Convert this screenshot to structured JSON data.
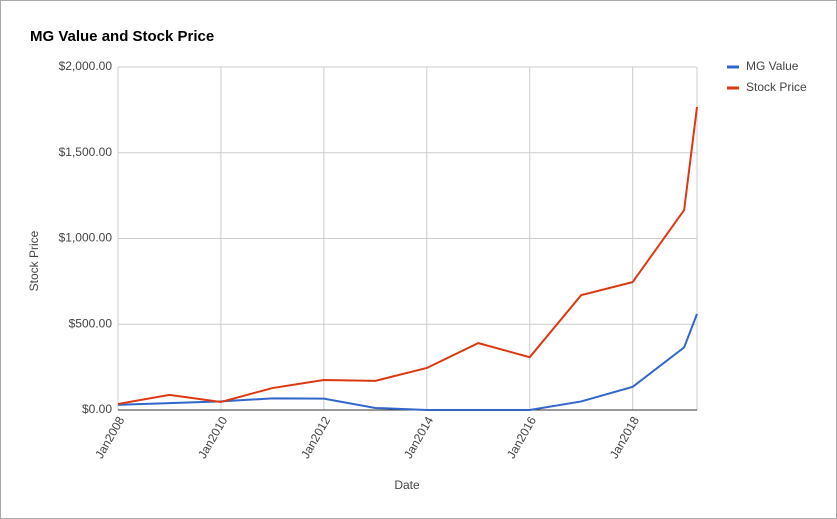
{
  "chart_data": {
    "type": "line",
    "title": "MG Value and Stock Price",
    "x_label": "Date",
    "y_label": "Stock Price",
    "x": [
      "2008-01",
      "2009-01",
      "2010-01",
      "2011-01",
      "2012-01",
      "2013-01",
      "2014-01",
      "2015-01",
      "2016-01",
      "2017-01",
      "2018-01",
      "2019-01",
      "2019-04"
    ],
    "series": [
      {
        "name": "MG Value",
        "color": "#3366cc",
        "values": [
          30,
          40,
          50,
          68,
          66,
          12,
          0,
          0,
          0,
          50,
          135,
          365,
          560
        ]
      },
      {
        "name": "Stock Price",
        "color": "#dc3912",
        "values": [
          35,
          88,
          47,
          128,
          175,
          170,
          245,
          390,
          308,
          670,
          746,
          1166,
          1767
        ]
      }
    ],
    "xlim": [
      "2008-01",
      "2019-04"
    ],
    "xticks": [
      {
        "value": "2008-01",
        "label": "Jan2008"
      },
      {
        "value": "2010-01",
        "label": "Jan2010"
      },
      {
        "value": "2012-01",
        "label": "Jan2012"
      },
      {
        "value": "2014-01",
        "label": "Jan2014"
      },
      {
        "value": "2016-01",
        "label": "Jan2016"
      },
      {
        "value": "2018-01",
        "label": "Jan2018"
      }
    ],
    "ylim": [
      0,
      2000
    ],
    "yticks": [
      {
        "value": 0,
        "label": "$0.00"
      },
      {
        "value": 500,
        "label": "$500.00"
      },
      {
        "value": 1000,
        "label": "$1,000.00"
      },
      {
        "value": 1500,
        "label": "$1,500.00"
      },
      {
        "value": 2000,
        "label": "$2,000.00"
      }
    ],
    "grid": true,
    "legend": "right"
  }
}
